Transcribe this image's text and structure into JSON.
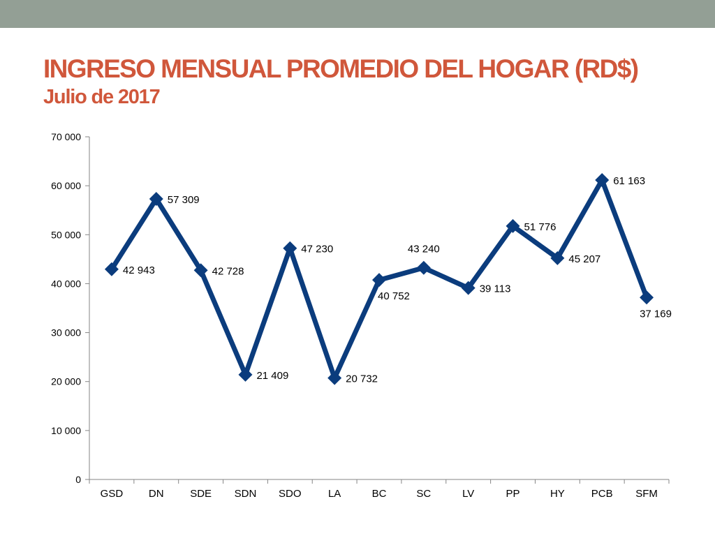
{
  "slide": {
    "title": "INGRESO MENSUAL PROMEDIO DEL HOGAR (RD$)",
    "subtitle": "Julio de 2017"
  },
  "colors": {
    "top_bar": "#939f95",
    "title": "#d0573b",
    "series_line": "#0b3c7d",
    "axis": "#868686"
  },
  "chart_data": {
    "type": "line",
    "categories": [
      "GSD",
      "DN",
      "SDE",
      "SDN",
      "SDO",
      "LA",
      "BC",
      "SC",
      "LV",
      "PP",
      "HY",
      "PCB",
      "SFM"
    ],
    "series": [
      {
        "values": [
          42943,
          57309,
          42728,
          21409,
          47230,
          20732,
          40752,
          43240,
          39113,
          51776,
          45207,
          61163,
          37169
        ],
        "data_labels": [
          "42 943",
          "57 309",
          "42 728",
          "21 409",
          "47 230",
          "20 732",
          "40 752",
          "43 240",
          "39 113",
          "51 776",
          "45 207",
          "61 163",
          "37 169"
        ],
        "marker": "diamond"
      }
    ],
    "ylim": [
      0,
      70000
    ],
    "y_ticks": [
      0,
      10000,
      20000,
      30000,
      40000,
      50000,
      60000,
      70000
    ],
    "y_tick_labels": [
      "0",
      "10 000",
      "20 000",
      "30 000",
      "40 000",
      "50 000",
      "60 000",
      "70 000"
    ],
    "xlabel": "",
    "ylabel": "",
    "grid": false,
    "legend": "none"
  }
}
